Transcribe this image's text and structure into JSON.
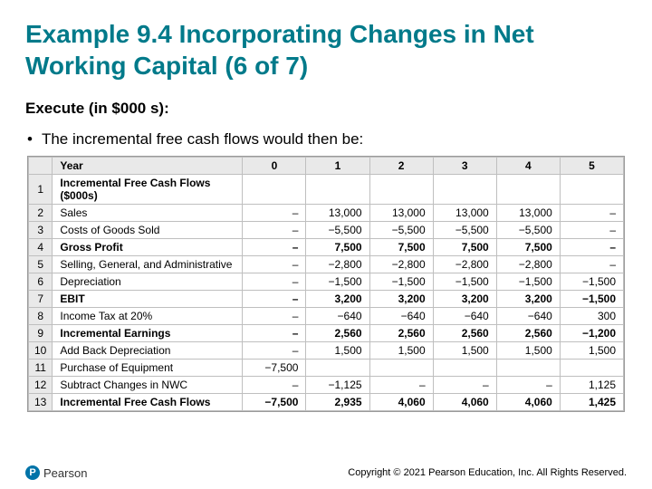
{
  "title": "Example 9.4 Incorporating Changes in Net Working Capital (6 of 7)",
  "subhead": "Execute (in $000 s):",
  "bullet": "The incremental free cash flows would then be:",
  "footer": "Copyright © 2021 Pearson Education, Inc. All Rights Reserved.",
  "logo_text": "Pearson",
  "logo_letter": "P",
  "table": {
    "header_label": "Year",
    "year_cols": [
      "0",
      "1",
      "2",
      "3",
      "4",
      "5"
    ],
    "rows": [
      {
        "n": "1",
        "label": "Incremental Free Cash Flows ($000s)",
        "vals": [
          "",
          "",
          "",
          "",
          "",
          ""
        ],
        "bold": true
      },
      {
        "n": "2",
        "label": "Sales",
        "vals": [
          "–",
          "13,000",
          "13,000",
          "13,000",
          "13,000",
          "–"
        ],
        "bold": false
      },
      {
        "n": "3",
        "label": "Costs of Goods Sold",
        "vals": [
          "–",
          "−5,500",
          "−5,500",
          "−5,500",
          "−5,500",
          "–"
        ],
        "bold": false
      },
      {
        "n": "4",
        "label": "Gross Profit",
        "vals": [
          "–",
          "7,500",
          "7,500",
          "7,500",
          "7,500",
          "–"
        ],
        "bold": true
      },
      {
        "n": "5",
        "label": "Selling, General, and Administrative",
        "vals": [
          "–",
          "−2,800",
          "−2,800",
          "−2,800",
          "−2,800",
          "–"
        ],
        "bold": false
      },
      {
        "n": "6",
        "label": "Depreciation",
        "vals": [
          "–",
          "−1,500",
          "−1,500",
          "−1,500",
          "−1,500",
          "−1,500"
        ],
        "bold": false
      },
      {
        "n": "7",
        "label": "EBIT",
        "vals": [
          "–",
          "3,200",
          "3,200",
          "3,200",
          "3,200",
          "−1,500"
        ],
        "bold": true
      },
      {
        "n": "8",
        "label": "Income Tax at 20%",
        "vals": [
          "–",
          "−640",
          "−640",
          "−640",
          "−640",
          "300"
        ],
        "bold": false
      },
      {
        "n": "9",
        "label": "Incremental Earnings",
        "vals": [
          "–",
          "2,560",
          "2,560",
          "2,560",
          "2,560",
          "−1,200"
        ],
        "bold": true
      },
      {
        "n": "10",
        "label": "Add Back Depreciation",
        "vals": [
          "–",
          "1,500",
          "1,500",
          "1,500",
          "1,500",
          "1,500"
        ],
        "bold": false
      },
      {
        "n": "11",
        "label": "Purchase of Equipment",
        "vals": [
          "−7,500",
          "",
          "",
          "",
          "",
          ""
        ],
        "bold": false
      },
      {
        "n": "12",
        "label": "Subtract Changes in NWC",
        "vals": [
          "–",
          "−1,125",
          "–",
          "–",
          "–",
          "1,125"
        ],
        "bold": false
      },
      {
        "n": "13",
        "label": "Incremental Free Cash Flows",
        "vals": [
          "−7,500",
          "2,935",
          "4,060",
          "4,060",
          "4,060",
          "1,425"
        ],
        "bold": true
      }
    ],
    "colors": {
      "header_bg": "#e9e9e9",
      "border": "#bfbfbf",
      "outer_border": "#9a9a9a"
    }
  }
}
